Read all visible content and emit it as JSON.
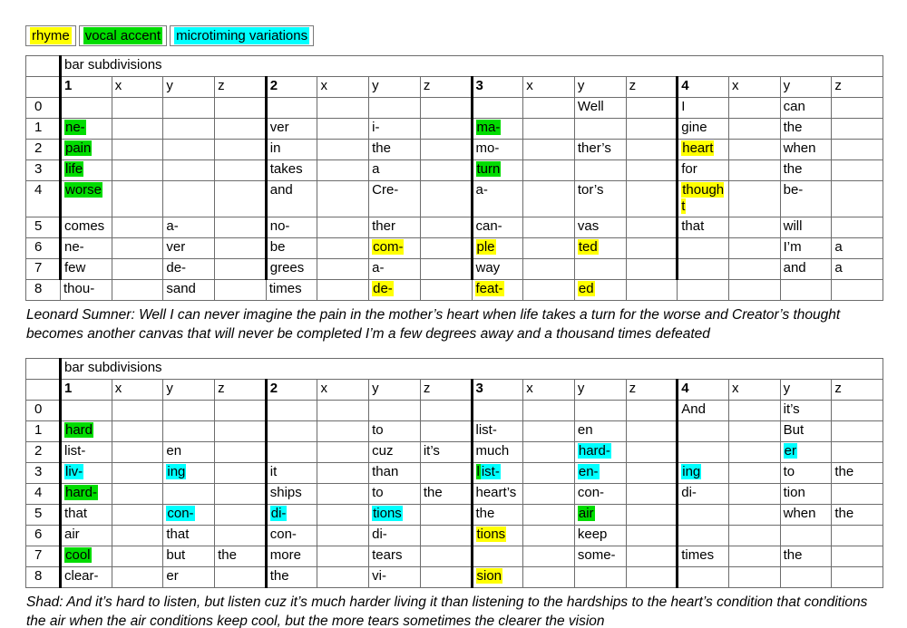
{
  "colors": {
    "rhyme": "#ffff00",
    "vocal_accent": "#00dc00",
    "microtiming": "#00ffff"
  },
  "legend": {
    "items": [
      {
        "label": "rhyme",
        "key": "y"
      },
      {
        "label": "vocal accent",
        "key": "g"
      },
      {
        "label": "microtiming variations",
        "key": "c"
      }
    ]
  },
  "tables": [
    {
      "title": "bar subdivisions",
      "columns": [
        "1",
        "x",
        "y",
        "z",
        "2",
        "x",
        "y",
        "z",
        "3",
        "x",
        "y",
        "z",
        "4",
        "x",
        "y",
        "z"
      ],
      "row_labels": [
        "0",
        "1",
        "2",
        "3",
        "4",
        "5",
        "6",
        "7",
        "8"
      ],
      "thick_last_row": false,
      "rows": [
        [
          "",
          "",
          "",
          "",
          "",
          "",
          "",
          "",
          "",
          "",
          "Well",
          "",
          "I",
          "",
          "can",
          ""
        ],
        [
          {
            "t": "ne-",
            "h": "g"
          },
          "",
          "",
          "",
          "ver",
          "",
          "i-",
          "",
          {
            "t": "ma-",
            "h": "g"
          },
          "",
          "",
          "",
          "gine",
          "",
          "the",
          ""
        ],
        [
          {
            "t": "pain",
            "h": "g"
          },
          "",
          "",
          "",
          "in",
          "",
          "the",
          "",
          "mo-",
          "",
          "ther’s",
          "",
          {
            "t": "heart",
            "h": "y"
          },
          "",
          "when",
          ""
        ],
        [
          {
            "t": "life",
            "h": "g"
          },
          "",
          "",
          "",
          "takes",
          "",
          "a",
          "",
          {
            "t": "turn",
            "h": "g"
          },
          "",
          "",
          "",
          "for",
          "",
          "the",
          ""
        ],
        [
          {
            "t": "worse",
            "h": "g"
          },
          "",
          "",
          "",
          "and",
          "",
          "Cre-",
          "",
          "a-",
          "",
          "tor’s",
          "",
          {
            "t": "thought",
            "h": "y"
          },
          "",
          "be-",
          ""
        ],
        [
          "comes",
          "",
          "a-",
          "",
          "no-",
          "",
          "ther",
          "",
          "can-",
          "",
          "vas",
          "",
          "that",
          "",
          "will",
          ""
        ],
        [
          "ne-",
          "",
          "ver",
          "",
          "be",
          "",
          {
            "t": "com-",
            "h": "y"
          },
          "",
          {
            "t": "ple",
            "h": "y"
          },
          "",
          {
            "t": "ted",
            "h": "y"
          },
          "",
          "",
          "",
          "I’m",
          "a"
        ],
        [
          "few",
          "",
          "de-",
          "",
          "grees",
          "",
          "a-",
          "",
          "way",
          "",
          "",
          "",
          "",
          "",
          "and",
          "a"
        ],
        [
          "thou-",
          "",
          "sand",
          "",
          "times",
          "",
          {
            "t": "de-",
            "h": "y"
          },
          "",
          {
            "t": "feat-",
            "h": "y"
          },
          "",
          {
            "t": "ed",
            "h": "y"
          },
          "",
          "",
          "",
          "",
          ""
        ]
      ],
      "caption": "Leonard Sumner: Well I can never imagine the pain in the mother’s heart when life takes a turn for the worse and Creator’s thought becomes another canvas that will never be completed I’m a few degrees away and a thousand times defeated"
    },
    {
      "title": "bar subdivisions",
      "columns": [
        "1",
        "x",
        "y",
        "z",
        "2",
        "x",
        "y",
        "z",
        "3",
        "x",
        "y",
        "z",
        "4",
        "x",
        "y",
        "z"
      ],
      "row_labels": [
        "0",
        "1",
        "2",
        "3",
        "4",
        "5",
        "6",
        "7",
        "8"
      ],
      "thick_last_row": true,
      "rows": [
        [
          "",
          "",
          "",
          "",
          "",
          "",
          "",
          "",
          "",
          "",
          "",
          "",
          "And",
          "",
          "it’s",
          ""
        ],
        [
          {
            "t": "hard",
            "h": "g"
          },
          "",
          "",
          "",
          "",
          "",
          "to",
          "",
          "list-",
          "",
          "en",
          "",
          "",
          "",
          "But",
          ""
        ],
        [
          "list-",
          "",
          "en",
          "",
          "",
          "",
          "cuz",
          "it’s",
          "much",
          "",
          {
            "t": "hard-",
            "h": "c"
          },
          "",
          "",
          "",
          {
            "t": "er",
            "h": "c"
          },
          ""
        ],
        [
          {
            "t": "liv-",
            "h": "c"
          },
          "",
          {
            "t": "ing",
            "h": "c"
          },
          "",
          "it",
          "",
          "than",
          "",
          {
            "seg": [
              {
                "t": "l",
                "h": "g"
              },
              {
                "t": "ist-",
                "h": "c"
              }
            ]
          },
          "",
          {
            "t": "en-",
            "h": "c"
          },
          "",
          {
            "t": "ing",
            "h": "c"
          },
          "",
          "to",
          "the"
        ],
        [
          {
            "t": "hard-",
            "h": "g"
          },
          "",
          "",
          "",
          "ships",
          "",
          "to",
          "the",
          "heart’s",
          "",
          "con-",
          "",
          "di-",
          "",
          "tion",
          ""
        ],
        [
          "that",
          "",
          {
            "t": "con-",
            "h": "c"
          },
          "",
          {
            "t": "di-",
            "h": "c"
          },
          "",
          {
            "t": "tions",
            "h": "c"
          },
          "",
          "the",
          "",
          {
            "t": "air",
            "h": "g"
          },
          "",
          "",
          "",
          "when",
          "the"
        ],
        [
          "air",
          "",
          "that",
          "",
          "con-",
          "",
          "di-",
          "",
          {
            "t": "tions",
            "h": "y"
          },
          "",
          "keep",
          "",
          "",
          "",
          "",
          ""
        ],
        [
          {
            "t": "cool",
            "h": "g"
          },
          "",
          "but",
          "the",
          "more",
          "",
          "tears",
          "",
          "",
          "",
          "some-",
          "",
          "times",
          "",
          "the",
          ""
        ],
        [
          "clear-",
          "",
          "er",
          "",
          "the",
          "",
          "vi-",
          "",
          {
            "t": "sion",
            "h": "y"
          },
          "",
          "",
          "",
          "",
          "",
          "",
          ""
        ]
      ],
      "caption": "Shad: And it’s hard to listen, but listen cuz it’s much harder living it than listening to the hardships to the heart’s condition that conditions the air when the air conditions keep cool, but the more tears sometimes the clearer the vision"
    }
  ]
}
